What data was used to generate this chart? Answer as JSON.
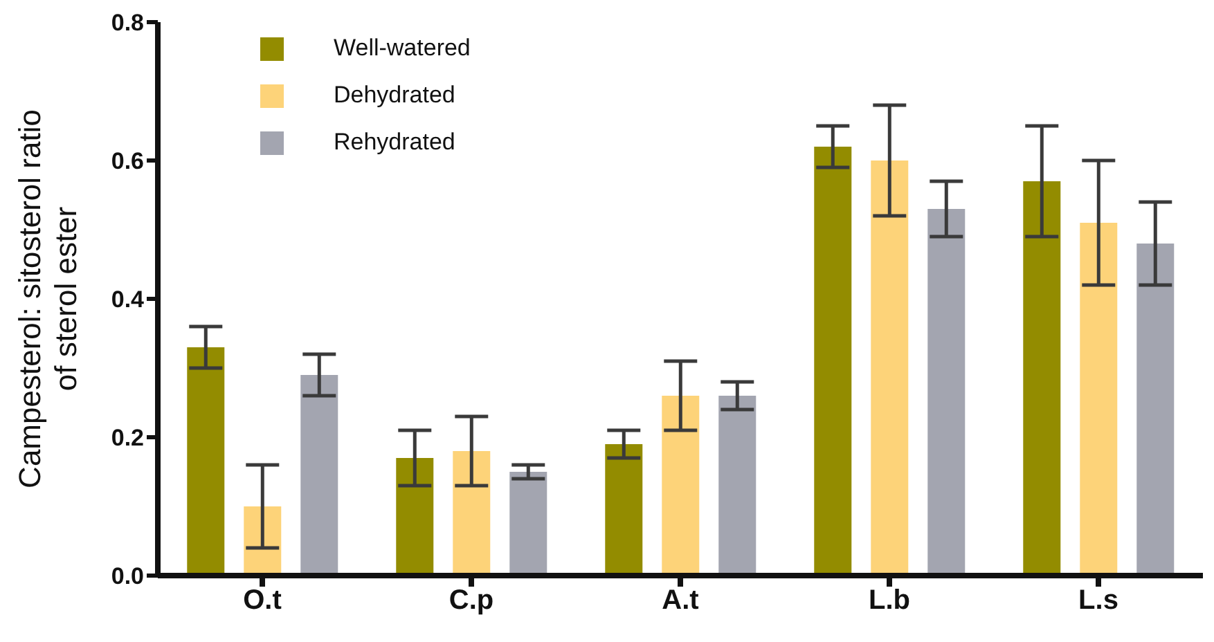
{
  "chart_data": {
    "type": "bar",
    "ylabel": "Campesterol: sitosterol ratio\nof sterol ester",
    "categories": [
      "O.t",
      "C.p",
      "A.t",
      "L.b",
      "L.s"
    ],
    "series": [
      {
        "name": "Well-watered",
        "color": "#938c00",
        "values": [
          0.33,
          0.17,
          0.19,
          0.62,
          0.57
        ],
        "errors": [
          0.03,
          0.04,
          0.02,
          0.03,
          0.08
        ]
      },
      {
        "name": "Dehydrated",
        "color": "#fdd379",
        "values": [
          0.1,
          0.18,
          0.26,
          0.6,
          0.51
        ],
        "errors": [
          0.06,
          0.05,
          0.05,
          0.08,
          [
            0.42,
            0.6
          ]
        ]
      },
      {
        "name": "Rehydrated",
        "color": "#a3a5b0",
        "values": [
          0.29,
          0.15,
          0.26,
          0.53,
          0.48
        ],
        "errors": [
          0.03,
          0.01,
          0.02,
          0.04,
          0.06
        ]
      }
    ],
    "ylim": [
      0,
      0.8
    ],
    "yticks": [
      {
        "value": 0,
        "label": "0.0"
      },
      0.2,
      0.4,
      0.6,
      0.8
    ],
    "legend": "top left",
    "grid": false
  }
}
